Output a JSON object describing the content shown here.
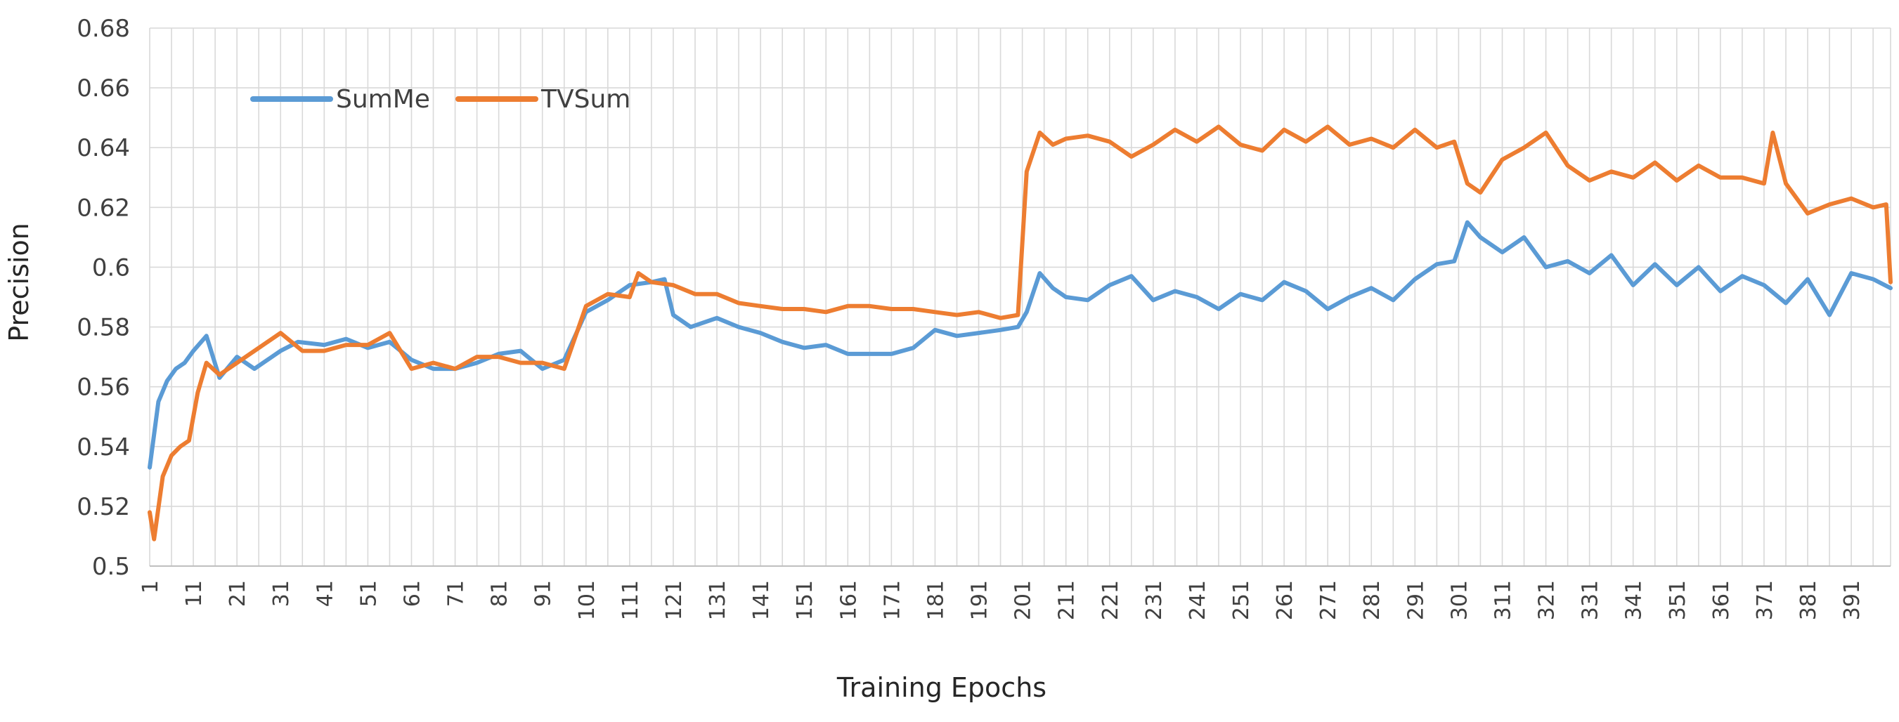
{
  "chart_data": {
    "type": "line",
    "title": "",
    "xlabel": "Training Epochs",
    "ylabel": "Precision",
    "x_range": [
      1,
      400
    ],
    "ylim": [
      0.5,
      0.68
    ],
    "y_ticks": [
      0.5,
      0.52,
      0.54,
      0.56,
      0.58,
      0.6,
      0.62,
      0.64,
      0.66,
      0.68
    ],
    "y_tick_labels": [
      "0.5",
      "0.52",
      "0.54",
      "0.56",
      "0.58",
      "0.6",
      "0.62",
      "0.64",
      "0.66",
      "0.68"
    ],
    "x_ticks": [
      1,
      11,
      21,
      31,
      41,
      51,
      61,
      71,
      81,
      91,
      101,
      111,
      121,
      131,
      141,
      151,
      161,
      171,
      181,
      191,
      201,
      211,
      221,
      231,
      241,
      251,
      261,
      271,
      281,
      291,
      301,
      311,
      321,
      331,
      341,
      351,
      361,
      371,
      381,
      391
    ],
    "x_tick_labels": [
      "1",
      "11",
      "21",
      "31",
      "41",
      "51",
      "61",
      "71",
      "81",
      "91",
      "101",
      "111",
      "121",
      "131",
      "141",
      "151",
      "161",
      "171",
      "181",
      "191",
      "201",
      "211",
      "221",
      "231",
      "241",
      "251",
      "261",
      "271",
      "281",
      "291",
      "301",
      "311",
      "321",
      "331",
      "341",
      "351",
      "361",
      "371",
      "381",
      "391"
    ],
    "grid": true,
    "legend": {
      "placement": "top-left",
      "entries": [
        "SumMe",
        "TVSum"
      ]
    },
    "series": [
      {
        "name": "SumMe",
        "color": "#5B9BD5",
        "x": [
          1,
          3,
          5,
          7,
          9,
          11,
          14,
          17,
          21,
          25,
          31,
          35,
          41,
          46,
          51,
          56,
          61,
          66,
          71,
          76,
          81,
          86,
          91,
          96,
          101,
          106,
          111,
          116,
          119,
          121,
          125,
          131,
          136,
          141,
          146,
          151,
          156,
          161,
          166,
          171,
          176,
          181,
          186,
          191,
          196,
          200,
          202,
          205,
          208,
          211,
          216,
          221,
          226,
          231,
          236,
          241,
          246,
          251,
          256,
          261,
          266,
          271,
          276,
          281,
          286,
          291,
          296,
          300,
          303,
          306,
          311,
          316,
          321,
          326,
          331,
          336,
          341,
          346,
          351,
          356,
          361,
          366,
          371,
          376,
          381,
          386,
          391,
          396,
          400
        ],
        "values": [
          0.533,
          0.555,
          0.562,
          0.566,
          0.568,
          0.572,
          0.577,
          0.563,
          0.57,
          0.566,
          0.572,
          0.575,
          0.574,
          0.576,
          0.573,
          0.575,
          0.569,
          0.566,
          0.566,
          0.568,
          0.571,
          0.572,
          0.566,
          0.569,
          0.585,
          0.589,
          0.594,
          0.595,
          0.596,
          0.584,
          0.58,
          0.583,
          0.58,
          0.578,
          0.575,
          0.573,
          0.574,
          0.571,
          0.571,
          0.571,
          0.573,
          0.579,
          0.577,
          0.578,
          0.579,
          0.58,
          0.585,
          0.598,
          0.593,
          0.59,
          0.589,
          0.594,
          0.597,
          0.589,
          0.592,
          0.59,
          0.586,
          0.591,
          0.589,
          0.595,
          0.592,
          0.586,
          0.59,
          0.593,
          0.589,
          0.596,
          0.601,
          0.602,
          0.615,
          0.61,
          0.605,
          0.61,
          0.6,
          0.602,
          0.598,
          0.604,
          0.594,
          0.601,
          0.594,
          0.6,
          0.592,
          0.597,
          0.594,
          0.588,
          0.596,
          0.584,
          0.598,
          0.596,
          0.593
        ]
      },
      {
        "name": "TVSum",
        "color": "#ED7D31",
        "x": [
          1,
          2,
          4,
          6,
          8,
          10,
          12,
          14,
          17,
          21,
          25,
          31,
          36,
          41,
          46,
          51,
          56,
          61,
          66,
          71,
          76,
          81,
          86,
          91,
          96,
          101,
          106,
          111,
          113,
          116,
          121,
          126,
          131,
          136,
          141,
          146,
          151,
          156,
          161,
          166,
          171,
          176,
          181,
          186,
          191,
          196,
          200,
          202,
          205,
          208,
          211,
          216,
          221,
          226,
          231,
          236,
          241,
          246,
          251,
          256,
          261,
          266,
          271,
          276,
          281,
          286,
          291,
          296,
          300,
          303,
          306,
          311,
          316,
          321,
          326,
          331,
          336,
          341,
          346,
          351,
          356,
          361,
          366,
          371,
          373,
          376,
          381,
          386,
          391,
          396,
          399,
          400
        ],
        "values": [
          0.518,
          0.509,
          0.53,
          0.537,
          0.54,
          0.542,
          0.558,
          0.568,
          0.564,
          0.568,
          0.572,
          0.578,
          0.572,
          0.572,
          0.574,
          0.574,
          0.578,
          0.566,
          0.568,
          0.566,
          0.57,
          0.57,
          0.568,
          0.568,
          0.566,
          0.587,
          0.591,
          0.59,
          0.598,
          0.595,
          0.594,
          0.591,
          0.591,
          0.588,
          0.587,
          0.586,
          0.586,
          0.585,
          0.587,
          0.587,
          0.586,
          0.586,
          0.585,
          0.584,
          0.585,
          0.583,
          0.584,
          0.632,
          0.645,
          0.641,
          0.643,
          0.644,
          0.642,
          0.637,
          0.641,
          0.646,
          0.642,
          0.647,
          0.641,
          0.639,
          0.646,
          0.642,
          0.647,
          0.641,
          0.643,
          0.64,
          0.646,
          0.64,
          0.642,
          0.628,
          0.625,
          0.636,
          0.64,
          0.645,
          0.634,
          0.629,
          0.632,
          0.63,
          0.635,
          0.629,
          0.634,
          0.63,
          0.63,
          0.628,
          0.645,
          0.628,
          0.618,
          0.621,
          0.623,
          0.62,
          0.621,
          0.595
        ]
      }
    ]
  }
}
